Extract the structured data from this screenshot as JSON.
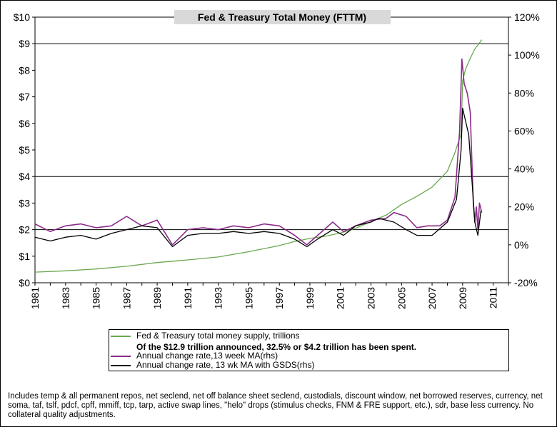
{
  "chart_data": {
    "type": "line",
    "title": "Fed & Treasury Total Money (FTTM)",
    "y_left": {
      "min": 0,
      "max": 10,
      "ticks": [
        "$0",
        "$1",
        "$2",
        "$3",
        "$4",
        "$5",
        "$6",
        "$7",
        "$8",
        "$9",
        "$10"
      ]
    },
    "y_right": {
      "min": -20,
      "max": 120,
      "ticks": [
        "-20%",
        "0%",
        "20%",
        "40%",
        "60%",
        "80%",
        "100%",
        "120%"
      ]
    },
    "x": {
      "min": 1981,
      "max": 2012,
      "ticks": [
        "1981",
        "1983",
        "1985",
        "1987",
        "1989",
        "1991",
        "1993",
        "1995",
        "1997",
        "1999",
        "2001",
        "2003",
        "2005",
        "2007",
        "2009",
        "2011"
      ]
    },
    "grid": "horizontal at $2, $4, $9",
    "series": [
      {
        "name": "Fed & Treasury total money supply, trillions",
        "axis": "left",
        "color": "#6aa84f",
        "points": [
          [
            1981,
            0.4
          ],
          [
            1983,
            0.45
          ],
          [
            1985,
            0.52
          ],
          [
            1987,
            0.62
          ],
          [
            1989,
            0.76
          ],
          [
            1991,
            0.86
          ],
          [
            1993,
            0.97
          ],
          [
            1995,
            1.17
          ],
          [
            1997,
            1.4
          ],
          [
            1998,
            1.55
          ],
          [
            1999,
            1.67
          ],
          [
            2000,
            1.75
          ],
          [
            2001,
            1.87
          ],
          [
            2002,
            2.05
          ],
          [
            2003,
            2.3
          ],
          [
            2004,
            2.55
          ],
          [
            2005,
            2.95
          ],
          [
            2006,
            3.25
          ],
          [
            2007,
            3.6
          ],
          [
            2008,
            4.2
          ],
          [
            2008.5,
            4.9
          ],
          [
            2008.9,
            5.6
          ],
          [
            2009.0,
            7.6
          ],
          [
            2009.2,
            8.05
          ],
          [
            2009.5,
            8.45
          ],
          [
            2009.8,
            8.8
          ],
          [
            2010.0,
            8.95
          ],
          [
            2010.25,
            9.15
          ]
        ]
      },
      {
        "name": "Annual change rate,13 week MA(rhs)",
        "axis": "right",
        "color": "#8b2c8b",
        "points": [
          [
            1981,
            11
          ],
          [
            1982,
            7
          ],
          [
            1983,
            10
          ],
          [
            1984,
            11
          ],
          [
            1985,
            9
          ],
          [
            1986,
            10
          ],
          [
            1987,
            15
          ],
          [
            1988,
            10
          ],
          [
            1989,
            13
          ],
          [
            1990,
            0
          ],
          [
            1991,
            8
          ],
          [
            1992,
            9
          ],
          [
            1993,
            8
          ],
          [
            1994,
            10
          ],
          [
            1995,
            9
          ],
          [
            1996,
            11
          ],
          [
            1997,
            10
          ],
          [
            1998,
            5
          ],
          [
            1998.8,
            0
          ],
          [
            1999.5,
            5
          ],
          [
            2000.5,
            12
          ],
          [
            2001.2,
            7
          ],
          [
            2002,
            10
          ],
          [
            2003,
            13
          ],
          [
            2004,
            14
          ],
          [
            2004.5,
            17
          ],
          [
            2005.3,
            15
          ],
          [
            2006,
            9
          ],
          [
            2006.7,
            10
          ],
          [
            2007.5,
            10
          ],
          [
            2008,
            13
          ],
          [
            2008.5,
            25
          ],
          [
            2008.8,
            60
          ],
          [
            2008.95,
            98
          ],
          [
            2009.1,
            85
          ],
          [
            2009.3,
            80
          ],
          [
            2009.5,
            70
          ],
          [
            2009.7,
            22
          ],
          [
            2009.8,
            12
          ],
          [
            2009.9,
            20
          ],
          [
            2010.0,
            8
          ],
          [
            2010.1,
            22
          ],
          [
            2010.25,
            17
          ]
        ]
      },
      {
        "name": "Annual change rate, 13 wk MA with GSDS(rhs)",
        "axis": "right",
        "color": "#000000",
        "points": [
          [
            1981,
            4
          ],
          [
            1982,
            2
          ],
          [
            1983,
            4
          ],
          [
            1984,
            5
          ],
          [
            1985,
            3
          ],
          [
            1986,
            6
          ],
          [
            1987,
            8
          ],
          [
            1988,
            10
          ],
          [
            1989,
            9
          ],
          [
            1990,
            -1
          ],
          [
            1991,
            5
          ],
          [
            1992,
            6
          ],
          [
            1993,
            6
          ],
          [
            1994,
            7
          ],
          [
            1995,
            6
          ],
          [
            1996,
            7
          ],
          [
            1997,
            6
          ],
          [
            1998,
            3
          ],
          [
            1998.8,
            -1
          ],
          [
            1999.5,
            3
          ],
          [
            2000.5,
            8
          ],
          [
            2001.2,
            5
          ],
          [
            2002,
            10
          ],
          [
            2003,
            12
          ],
          [
            2003.5,
            14
          ],
          [
            2004.5,
            12
          ],
          [
            2005.3,
            8
          ],
          [
            2006,
            5
          ],
          [
            2007,
            5
          ],
          [
            2008,
            12
          ],
          [
            2008.6,
            24
          ],
          [
            2008.9,
            50
          ],
          [
            2009.0,
            72
          ],
          [
            2009.2,
            65
          ],
          [
            2009.4,
            58
          ],
          [
            2009.6,
            35
          ],
          [
            2009.8,
            12
          ],
          [
            2010.0,
            5
          ],
          [
            2010.2,
            18
          ]
        ]
      }
    ],
    "legend_note": "Of the $12.9 trillion announced, 32.5% or $4.2 trillion has been spent."
  },
  "legend": {
    "item1": "Fed & Treasury total money supply, trillions",
    "note": "Of the $12.9 trillion announced, 32.5% or $4.2 trillion has been spent.",
    "item2": "Annual change rate,13 week MA(rhs)",
    "item3": "Annual change rate, 13 wk MA with GSDS(rhs)"
  },
  "footnote": "Includes temp & all permanent repos, net seclend, net off balance sheet seclend, custodials, discount window, net borrowed reserves, currency, net soma, taf, tslf, pdcf, cpff, mmiff, tcp, tarp, active swap lines, \"helo\" drops (stimulus checks, FNM & FRE support, etc.), sdr, base less currency.  No collateral quality adjustments."
}
